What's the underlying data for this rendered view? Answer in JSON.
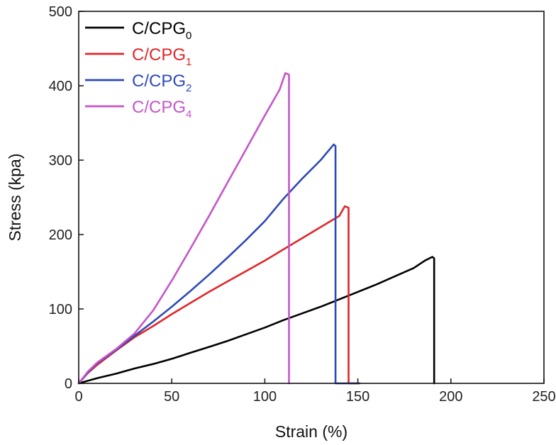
{
  "chart_data": {
    "type": "line",
    "title": "",
    "xlabel": "Strain (%)",
    "ylabel": "Stress (kpa)",
    "xlim": [
      0,
      250
    ],
    "ylim": [
      0,
      500
    ],
    "xticks": [
      0,
      50,
      100,
      150,
      200,
      250
    ],
    "yticks": [
      0,
      100,
      200,
      300,
      400,
      500
    ],
    "xtick_labels": [
      "0",
      "50",
      "100",
      "150",
      "200",
      "250"
    ],
    "ytick_labels": [
      "0",
      "100",
      "200",
      "300",
      "400",
      "500"
    ],
    "grid": false,
    "legend_position": "top-left",
    "series": [
      {
        "name": "C/CPG0",
        "label_base": "C/CPG",
        "label_sub": "0",
        "color": "#000000",
        "points": [
          [
            0,
            0
          ],
          [
            10,
            7
          ],
          [
            20,
            13
          ],
          [
            30,
            20
          ],
          [
            40,
            26
          ],
          [
            50,
            33
          ],
          [
            60,
            41
          ],
          [
            70,
            49
          ],
          [
            80,
            57
          ],
          [
            90,
            66
          ],
          [
            100,
            75
          ],
          [
            110,
            85
          ],
          [
            120,
            94
          ],
          [
            130,
            103
          ],
          [
            140,
            113
          ],
          [
            150,
            123
          ],
          [
            160,
            133
          ],
          [
            170,
            144
          ],
          [
            180,
            155
          ],
          [
            186,
            165
          ],
          [
            190,
            170
          ],
          [
            191,
            168
          ],
          [
            191,
            0
          ]
        ]
      },
      {
        "name": "C/CPG1",
        "label_base": "C/CPG",
        "label_sub": "1",
        "color": "#e0262a",
        "points": [
          [
            0,
            0
          ],
          [
            5,
            14
          ],
          [
            10,
            25
          ],
          [
            20,
            44
          ],
          [
            30,
            62
          ],
          [
            40,
            77
          ],
          [
            50,
            93
          ],
          [
            60,
            108
          ],
          [
            70,
            123
          ],
          [
            80,
            137
          ],
          [
            90,
            151
          ],
          [
            100,
            165
          ],
          [
            110,
            180
          ],
          [
            120,
            195
          ],
          [
            130,
            210
          ],
          [
            140,
            225
          ],
          [
            143,
            238
          ],
          [
            145,
            236
          ],
          [
            145,
            0
          ],
          [
            150,
            0
          ]
        ]
      },
      {
        "name": "C/CPG2",
        "label_base": "C/CPG",
        "label_sub": "2",
        "color": "#2e49b6",
        "points": [
          [
            0,
            0
          ],
          [
            5,
            15
          ],
          [
            10,
            27
          ],
          [
            20,
            45
          ],
          [
            30,
            64
          ],
          [
            40,
            83
          ],
          [
            50,
            103
          ],
          [
            60,
            124
          ],
          [
            70,
            146
          ],
          [
            80,
            169
          ],
          [
            90,
            193
          ],
          [
            100,
            218
          ],
          [
            110,
            248
          ],
          [
            120,
            275
          ],
          [
            130,
            300
          ],
          [
            137,
            321
          ],
          [
            138,
            319
          ],
          [
            138,
            0
          ],
          [
            151,
            0
          ]
        ]
      },
      {
        "name": "C/CPG4",
        "label_base": "C/CPG",
        "label_sub": "4",
        "color": "#c555c8",
        "points": [
          [
            0,
            0
          ],
          [
            5,
            16
          ],
          [
            10,
            28
          ],
          [
            20,
            46
          ],
          [
            30,
            67
          ],
          [
            40,
            98
          ],
          [
            50,
            138
          ],
          [
            60,
            181
          ],
          [
            70,
            225
          ],
          [
            80,
            270
          ],
          [
            90,
            315
          ],
          [
            100,
            360
          ],
          [
            108,
            395
          ],
          [
            111,
            417
          ],
          [
            113,
            415
          ],
          [
            113,
            0
          ]
        ]
      }
    ]
  }
}
